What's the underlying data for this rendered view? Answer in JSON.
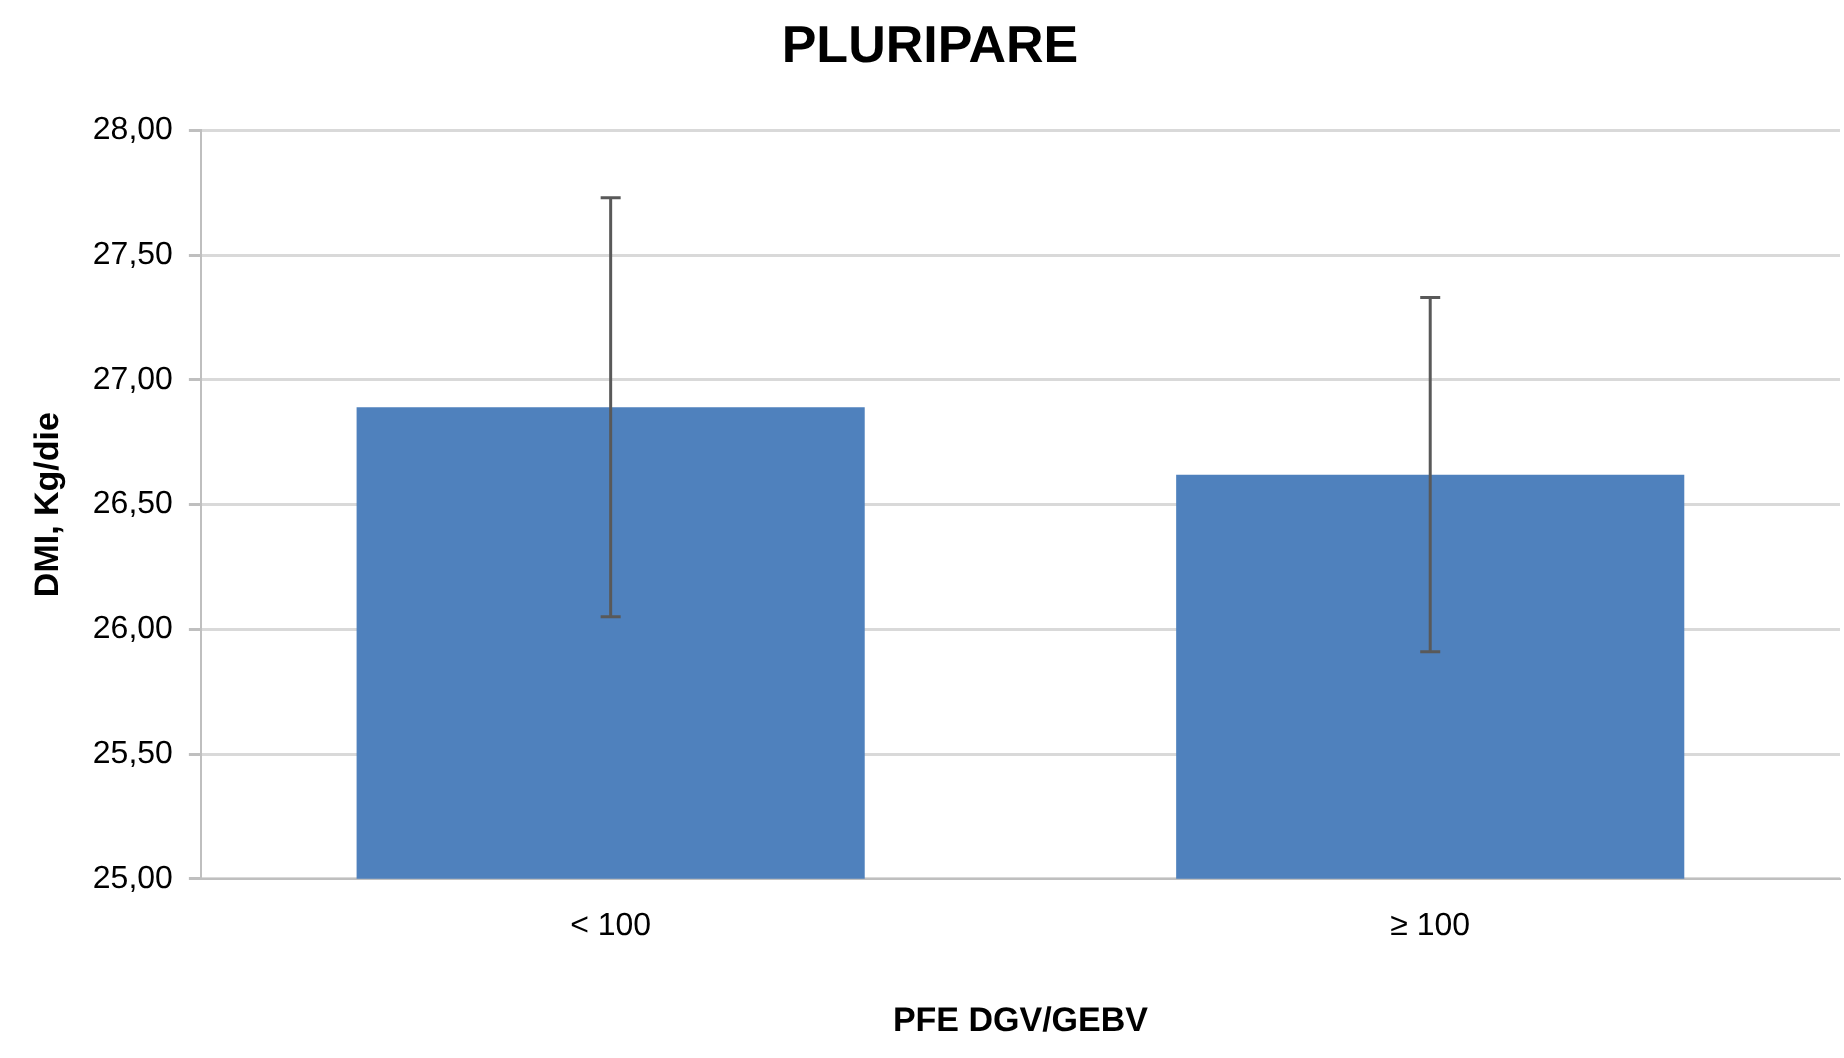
{
  "chart_data": {
    "type": "bar",
    "title": "PLURIPARE",
    "xlabel": "PFE DGV/GEBV",
    "ylabel": "DMI, Kg/die",
    "categories": [
      "< 100",
      "≥ 100"
    ],
    "values": [
      26.89,
      26.62
    ],
    "errors": [
      0.84,
      0.71
    ],
    "color": "#4f81bd",
    "ylim": [
      25,
      28
    ],
    "yticks": [
      {
        "value": 25,
        "label": "25,00"
      },
      {
        "value": 25.5,
        "label": "25,50"
      },
      {
        "value": 26,
        "label": "26,00"
      },
      {
        "value": 26.5,
        "label": "26,50"
      },
      {
        "value": 27,
        "label": "27,00"
      },
      {
        "value": 27.5,
        "label": "27,50"
      },
      {
        "value": 28,
        "label": "28,00"
      }
    ],
    "grid": "y",
    "legend": false
  }
}
